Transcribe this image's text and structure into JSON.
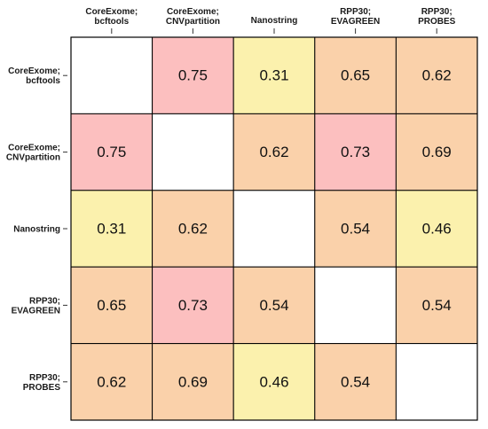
{
  "chart_data": {
    "type": "heatmap",
    "title": "",
    "xlabel": "",
    "ylabel": "",
    "labels": [
      [
        "CoreExome;",
        "bcftools"
      ],
      [
        "CoreExome;",
        "CNVpartition"
      ],
      [
        "Nanostring"
      ],
      [
        "RPP30;",
        "EVAGREEN"
      ],
      [
        "RPP30;",
        "PROBES"
      ]
    ],
    "values": [
      [
        null,
        0.75,
        0.31,
        0.65,
        0.62
      ],
      [
        0.75,
        null,
        0.62,
        0.73,
        0.69
      ],
      [
        0.31,
        0.62,
        null,
        0.54,
        0.46
      ],
      [
        0.65,
        0.73,
        0.54,
        null,
        0.54
      ],
      [
        0.62,
        0.69,
        0.46,
        0.54,
        null
      ]
    ],
    "colors": {
      "high": "#fcbfbf",
      "mid": "#fad1aa",
      "low": "#fbf1ad",
      "diagonal": "#ffffff",
      "border": "#000000"
    },
    "grid": true,
    "legend": "none"
  }
}
